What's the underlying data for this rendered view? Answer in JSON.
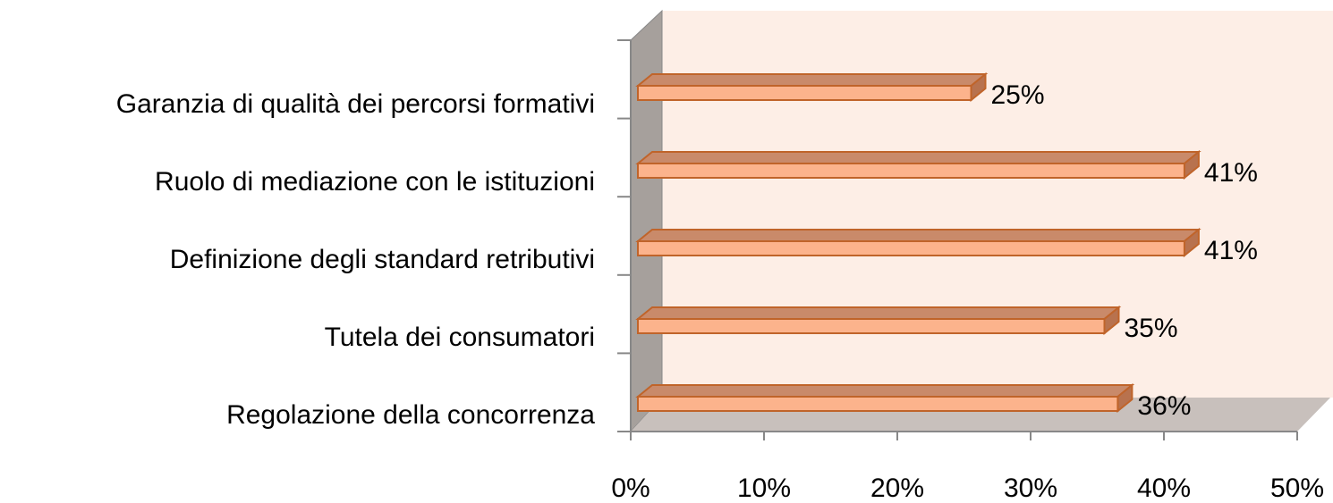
{
  "chart_data": {
    "type": "bar",
    "orientation": "horizontal",
    "categories": [
      "Garanzia di qualità dei percorsi formativi",
      "Ruolo di mediazione con le istituzioni",
      "Definizione degli standard retributivi",
      "Tutela dei consumatori",
      "Regolazione della concorrenza"
    ],
    "values": [
      25,
      41,
      41,
      35,
      36
    ],
    "value_labels": [
      "25%",
      "41%",
      "41%",
      "35%",
      "36%"
    ],
    "color": "#fcb38c",
    "xlim": [
      0,
      50
    ],
    "xticks": [
      {
        "value": 0,
        "label": "0%"
      },
      {
        "value": 10,
        "label": "10%"
      },
      {
        "value": 20,
        "label": "20%"
      },
      {
        "value": 30,
        "label": "30%"
      },
      {
        "value": 40,
        "label": "40%"
      },
      {
        "value": 50,
        "label": "50%"
      }
    ]
  }
}
